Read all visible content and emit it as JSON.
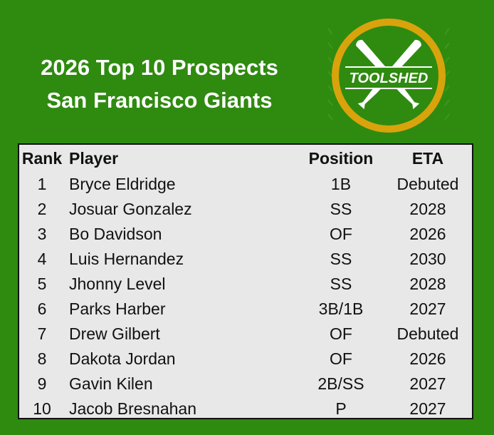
{
  "header": {
    "title_line1": "2026 Top 10 Prospects",
    "title_line2": "San Francisco Giants"
  },
  "logo": {
    "text": "TOOLSHED",
    "icon": "crossed-bats-icon",
    "colors": {
      "ring": "#d9a30c",
      "inner": "#2f8a10",
      "bats": "#ffffff"
    }
  },
  "table": {
    "headers": {
      "rank": "Rank",
      "player": "Player",
      "position": "Position",
      "eta": "ETA"
    },
    "rows": [
      {
        "rank": "1",
        "player": "Bryce Eldridge",
        "position": "1B",
        "eta": "Debuted"
      },
      {
        "rank": "2",
        "player": "Josuar Gonzalez",
        "position": "SS",
        "eta": "2028"
      },
      {
        "rank": "3",
        "player": "Bo Davidson",
        "position": "OF",
        "eta": "2026"
      },
      {
        "rank": "4",
        "player": "Luis Hernandez",
        "position": "SS",
        "eta": "2030"
      },
      {
        "rank": "5",
        "player": "Jhonny Level",
        "position": "SS",
        "eta": "2028"
      },
      {
        "rank": "6",
        "player": "Parks Harber",
        "position": "3B/1B",
        "eta": "2027"
      },
      {
        "rank": "7",
        "player": "Drew Gilbert",
        "position": "OF",
        "eta": "Debuted"
      },
      {
        "rank": "8",
        "player": "Dakota Jordan",
        "position": "OF",
        "eta": "2026"
      },
      {
        "rank": "9",
        "player": "Gavin Kilen",
        "position": "2B/SS",
        "eta": "2027"
      },
      {
        "rank": "10",
        "player": "Jacob Bresnahan",
        "position": "P",
        "eta": "2027"
      }
    ]
  }
}
